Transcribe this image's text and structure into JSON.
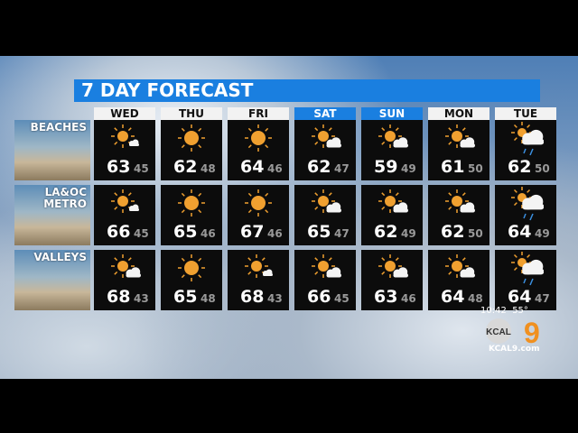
{
  "title": "7 DAY FORECAST",
  "days": [
    {
      "label": "WED",
      "weekend": false
    },
    {
      "label": "THU",
      "weekend": false
    },
    {
      "label": "FRI",
      "weekend": false
    },
    {
      "label": "SAT",
      "weekend": true
    },
    {
      "label": "SUN",
      "weekend": true
    },
    {
      "label": "MON",
      "weekend": false
    },
    {
      "label": "TUE",
      "weekend": false
    }
  ],
  "regions": [
    {
      "label": "BEACHES",
      "forecast": [
        {
          "icon": "mostly-sunny-icon",
          "hi": "63",
          "lo": "45"
        },
        {
          "icon": "sunny-icon",
          "hi": "62",
          "lo": "48"
        },
        {
          "icon": "sunny-icon",
          "hi": "64",
          "lo": "46"
        },
        {
          "icon": "partly-cloudy-icon",
          "hi": "62",
          "lo": "47"
        },
        {
          "icon": "partly-cloudy-icon",
          "hi": "59",
          "lo": "49"
        },
        {
          "icon": "partly-cloudy-icon",
          "hi": "61",
          "lo": "50"
        },
        {
          "icon": "rain-icon",
          "hi": "62",
          "lo": "50"
        }
      ]
    },
    {
      "label": "LA&OC METRO",
      "forecast": [
        {
          "icon": "mostly-sunny-icon",
          "hi": "66",
          "lo": "45"
        },
        {
          "icon": "sunny-icon",
          "hi": "65",
          "lo": "46"
        },
        {
          "icon": "sunny-icon",
          "hi": "67",
          "lo": "46"
        },
        {
          "icon": "partly-cloudy-icon",
          "hi": "65",
          "lo": "47"
        },
        {
          "icon": "partly-cloudy-icon",
          "hi": "62",
          "lo": "49"
        },
        {
          "icon": "partly-cloudy-icon",
          "hi": "62",
          "lo": "50"
        },
        {
          "icon": "rain-icon",
          "hi": "64",
          "lo": "49"
        }
      ]
    },
    {
      "label": "VALLEYS",
      "forecast": [
        {
          "icon": "partly-cloudy-icon",
          "hi": "68",
          "lo": "43"
        },
        {
          "icon": "sunny-icon",
          "hi": "65",
          "lo": "48"
        },
        {
          "icon": "mostly-sunny-icon",
          "hi": "68",
          "lo": "43"
        },
        {
          "icon": "partly-cloudy-icon",
          "hi": "66",
          "lo": "45"
        },
        {
          "icon": "partly-cloudy-icon",
          "hi": "63",
          "lo": "46"
        },
        {
          "icon": "partly-cloudy-icon",
          "hi": "64",
          "lo": "48"
        },
        {
          "icon": "rain-icon",
          "hi": "64",
          "lo": "47"
        }
      ]
    }
  ],
  "station": {
    "time": "10:42",
    "temp": "55°",
    "logo": "KCAL 9",
    "site": "KCAL9.com"
  },
  "colors": {
    "accent": "#1a7fe0",
    "sun": "#f0a030"
  }
}
